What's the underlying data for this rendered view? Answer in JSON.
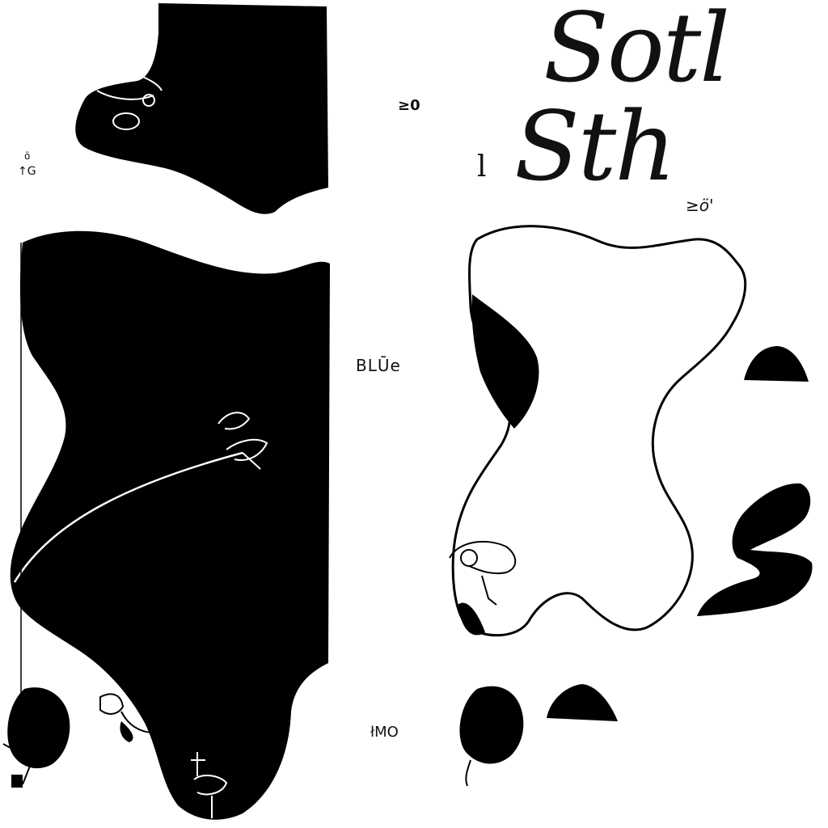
{
  "title": {
    "line1": "Sotl",
    "line2": "Sth"
  },
  "labels": {
    "top_small": "≥0",
    "left_small_a": "ö",
    "left_small_b": "↑G",
    "middle": "BLŪe",
    "bottom": "łMO",
    "side_mark": "l",
    "small_script": "≥ö'"
  },
  "colors": {
    "ink": "#000000",
    "paper": "#ffffff"
  }
}
